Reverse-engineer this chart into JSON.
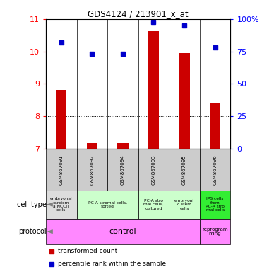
{
  "title": "GDS4124 / 213901_x_at",
  "samples": [
    "GSM867091",
    "GSM867092",
    "GSM867094",
    "GSM867093",
    "GSM867095",
    "GSM867096"
  ],
  "transformed_counts": [
    8.82,
    7.18,
    7.18,
    10.62,
    9.95,
    8.42
  ],
  "percentile_ranks": [
    82,
    73,
    73,
    98,
    95,
    78
  ],
  "ylim_left": [
    7,
    11
  ],
  "ylim_right": [
    0,
    100
  ],
  "yticks_left": [
    7,
    8,
    9,
    10,
    11
  ],
  "yticks_right": [
    0,
    25,
    50,
    75,
    100
  ],
  "yticklabels_right": [
    "0",
    "25",
    "50",
    "75",
    "100%"
  ],
  "cell_type_colors": [
    "#dddddd",
    "#ccffcc",
    "#ccffcc",
    "#ccffcc",
    "#33ee33"
  ],
  "protocol_color": "#ff88ff",
  "bar_color": "#cc0000",
  "dot_color": "#0000cc",
  "sample_box_color": "#cccccc",
  "cell_configs": [
    [
      0,
      0,
      "#dddddd",
      "embryonal\ncarciom\na NCCIT\ncells"
    ],
    [
      1,
      2,
      "#ccffcc",
      "PC-A stromal cells,\nsorted"
    ],
    [
      3,
      3,
      "#ccffcc",
      "PC-A stro\nmal cells,\ncultured"
    ],
    [
      4,
      4,
      "#ccffcc",
      "embryoni\nc stem\ncells"
    ],
    [
      5,
      5,
      "#33ee33",
      "IPS cells\nfrom\nPC-A stro\nmal cells"
    ]
  ]
}
